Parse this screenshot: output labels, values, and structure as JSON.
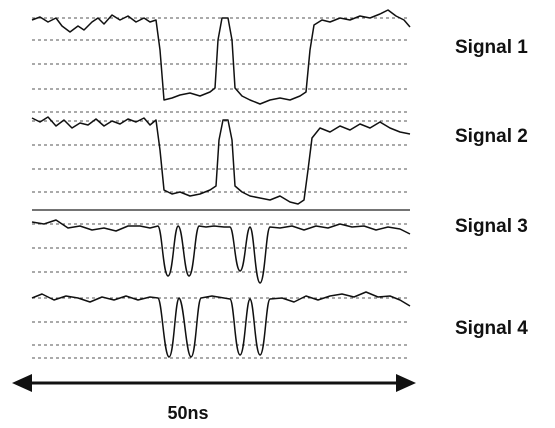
{
  "signals": [
    {
      "label": "Signal 1"
    },
    {
      "label": "Signal 2"
    },
    {
      "label": "Signal 3"
    },
    {
      "label": "Signal 4"
    }
  ],
  "time_scale": {
    "label": "50ns"
  },
  "colors": {
    "trace": "#111111",
    "grid": "#555555",
    "background": "#ffffff"
  }
}
